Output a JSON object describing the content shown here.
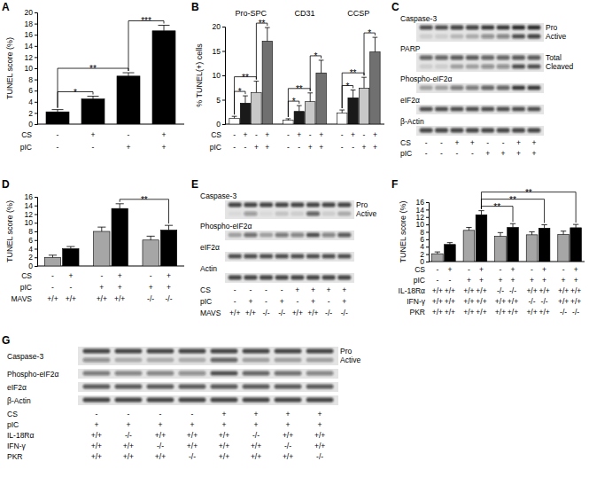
{
  "chart_data": [
    {
      "panel": "A",
      "type": "bar",
      "ylabel": "TUNEL score (%)",
      "ylim": [
        0,
        20
      ],
      "yticks": [
        0,
        2,
        4,
        6,
        8,
        10,
        12,
        14,
        16,
        18,
        20
      ],
      "categories": [
        null,
        null,
        null,
        null
      ],
      "series": [
        {
          "color": "#000000",
          "values": [
            2.2,
            4.5,
            8.6,
            16.7
          ],
          "errors": [
            0.4,
            0.5,
            0.6,
            1.0
          ]
        }
      ],
      "conditions": [
        {
          "label": "CS",
          "values": [
            "-",
            "+",
            "-",
            "+"
          ]
        },
        {
          "label": "pIC",
          "values": [
            "-",
            "-",
            "+",
            "+"
          ]
        }
      ],
      "significance": [
        {
          "from": [
            0,
            0
          ],
          "to": [
            1,
            0
          ],
          "label": "*"
        },
        {
          "from": [
            2,
            0
          ],
          "to": [
            3,
            0
          ],
          "label": "***"
        },
        {
          "from": [
            0,
            0
          ],
          "to": [
            2,
            0
          ],
          "label": "**"
        }
      ]
    },
    {
      "panel": "B",
      "type": "bar",
      "ylabel": "% TUNEL(+) cells",
      "ylim": [
        0,
        20
      ],
      "yticks": [
        0,
        5,
        10,
        15,
        20
      ],
      "categories": [
        "Pro-SPC",
        "CD31",
        "CCSP"
      ],
      "series": [
        {
          "color": "#ffffff",
          "values": [
            1.2,
            0.8,
            2.3
          ],
          "errors": [
            0.4,
            0.3,
            0.6
          ]
        },
        {
          "color": "#1a1a1a",
          "values": [
            4.3,
            2.6,
            5.4
          ],
          "errors": [
            1.5,
            1.2,
            1.6
          ]
        },
        {
          "color": "#c8c8c8",
          "values": [
            6.5,
            4.6,
            7.4
          ],
          "errors": [
            2.3,
            1.8,
            2.2
          ]
        },
        {
          "color": "#707070",
          "values": [
            17.0,
            10.5,
            14.8
          ],
          "errors": [
            2.8,
            2.6,
            3.0
          ]
        }
      ],
      "conditions": [
        {
          "label": "CS",
          "values": [
            "-",
            "+",
            "-",
            "+",
            "-",
            "+",
            "-",
            "+",
            "-",
            "+",
            "-",
            "+"
          ]
        },
        {
          "label": "pIC",
          "values": [
            "-",
            "-",
            "+",
            "+",
            "-",
            "-",
            "+",
            "+",
            "-",
            "-",
            "+",
            "+"
          ]
        }
      ],
      "significance": [
        {
          "from": [
            0,
            0
          ],
          "to": [
            0,
            1
          ],
          "label": "*"
        },
        {
          "from": [
            0,
            2
          ],
          "to": [
            0,
            3
          ],
          "label": "**"
        },
        {
          "from": [
            0,
            0
          ],
          "to": [
            0,
            2
          ],
          "label": "**"
        },
        {
          "from": [
            1,
            0
          ],
          "to": [
            1,
            1
          ],
          "label": "*"
        },
        {
          "from": [
            1,
            2
          ],
          "to": [
            1,
            3
          ],
          "label": "*"
        },
        {
          "from": [
            1,
            0
          ],
          "to": [
            1,
            2
          ],
          "label": "**"
        },
        {
          "from": [
            2,
            0
          ],
          "to": [
            2,
            1
          ],
          "label": "*"
        },
        {
          "from": [
            2,
            2
          ],
          "to": [
            2,
            3
          ],
          "label": "*"
        },
        {
          "from": [
            2,
            0
          ],
          "to": [
            2,
            2
          ],
          "label": "**"
        }
      ]
    },
    {
      "panel": "D",
      "type": "bar",
      "ylabel": "TUNEL score (%)",
      "ylim": [
        0,
        16
      ],
      "yticks": [
        0,
        2,
        4,
        6,
        8,
        10,
        12,
        14,
        16
      ],
      "categories": [
        null,
        null,
        null
      ],
      "series": [
        {
          "color": "#a6a6a6",
          "values": [
            2.0,
            8.0,
            6.0
          ],
          "errors": [
            0.5,
            1.0,
            0.9
          ]
        },
        {
          "color": "#000000",
          "values": [
            4.0,
            13.3,
            8.3
          ],
          "errors": [
            0.5,
            1.1,
            1.1
          ]
        }
      ],
      "conditions": [
        {
          "label": "CS",
          "values": [
            "-",
            "+",
            "-",
            "+",
            "-",
            "+"
          ]
        },
        {
          "label": "pIC",
          "values": [
            "-",
            "-",
            "+",
            "+",
            "+",
            "+"
          ]
        },
        {
          "label": "MAVS",
          "values": [
            "+/+",
            "+/+",
            "+/+",
            "+/+",
            "-/-",
            "-/-"
          ]
        }
      ],
      "significance": [
        {
          "from": [
            1,
            1
          ],
          "to": [
            2,
            1
          ],
          "label": "**"
        }
      ]
    },
    {
      "panel": "F",
      "type": "bar",
      "ylabel": "TUNEL score (%)",
      "ylim": [
        0,
        16
      ],
      "yticks": [
        0,
        2,
        4,
        6,
        8,
        10,
        12,
        14,
        16
      ],
      "categories": [
        null,
        null,
        null,
        null,
        null
      ],
      "series": [
        {
          "color": "#a6a6a6",
          "values": [
            2.1,
            8.4,
            6.8,
            7.2,
            7.3
          ],
          "errors": [
            0.5,
            0.8,
            1.0,
            0.8,
            0.9
          ]
        },
        {
          "color": "#000000",
          "values": [
            4.6,
            12.6,
            9.2,
            9.0,
            9.1
          ],
          "errors": [
            0.5,
            1.1,
            1.0,
            0.9,
            0.9
          ]
        }
      ],
      "conditions": [
        {
          "label": "CS",
          "values": [
            "-",
            "+",
            "-",
            "+",
            "-",
            "+",
            "-",
            "+",
            "-",
            "+"
          ]
        },
        {
          "label": "pIC",
          "values": [
            "-",
            "-",
            "+",
            "+",
            "+",
            "+",
            "+",
            "+",
            "+",
            "+"
          ]
        },
        {
          "label": "IL-18Rα",
          "values": [
            "+/+",
            "+/+",
            "+/+",
            "+/+",
            "-/-",
            "-/-",
            "+/+",
            "+/+",
            "+/+",
            "+/+"
          ]
        },
        {
          "label": "IFN-γ",
          "values": [
            "+/+",
            "+/+",
            "+/+",
            "+/+",
            "+/+",
            "+/+",
            "-/-",
            "-/-",
            "+/+",
            "+/+"
          ]
        },
        {
          "label": "PKR",
          "values": [
            "+/+",
            "+/+",
            "+/+",
            "+/+",
            "+/+",
            "+/+",
            "+/+",
            "+/+",
            "-/-",
            "-/-"
          ]
        }
      ],
      "significance": [
        {
          "from": [
            1,
            1
          ],
          "to": [
            2,
            1
          ],
          "label": "**"
        },
        {
          "from": [
            1,
            1
          ],
          "to": [
            3,
            1
          ],
          "label": "**"
        },
        {
          "from": [
            1,
            1
          ],
          "to": [
            4,
            1
          ],
          "label": "**"
        }
      ]
    }
  ],
  "blots": [
    {
      "panel": "C",
      "rows": [
        {
          "label": "Caspase-3",
          "bands": [
            {
              "label": "Pro",
              "intensity": [
                0.7,
                0.7,
                0.75,
                0.75,
                0.8,
                0.8,
                0.85,
                0.85
              ]
            },
            {
              "label": "Active",
              "intensity": [
                0.1,
                0.1,
                0.2,
                0.25,
                0.4,
                0.45,
                0.7,
                0.75
              ]
            }
          ]
        },
        {
          "label": "PARP",
          "bands": [
            {
              "label": "Total",
              "intensity": [
                0.6,
                0.6,
                0.65,
                0.65,
                0.6,
                0.6,
                0.65,
                0.65
              ]
            },
            {
              "label": "Cleaved",
              "intensity": [
                0.1,
                0.1,
                0.3,
                0.3,
                0.4,
                0.4,
                0.7,
                0.7
              ]
            }
          ]
        },
        {
          "label": "Phospho-eIF2α",
          "bands": [
            {
              "intensity": [
                0.3,
                0.3,
                0.5,
                0.5,
                0.6,
                0.6,
                0.8,
                0.8
              ]
            }
          ]
        },
        {
          "label": "eIF2α",
          "bands": [
            {
              "intensity": [
                0.7,
                0.7,
                0.7,
                0.7,
                0.7,
                0.7,
                0.7,
                0.7
              ]
            }
          ]
        },
        {
          "label": "β-Actin",
          "bands": [
            {
              "intensity": [
                0.75,
                0.75,
                0.75,
                0.75,
                0.75,
                0.75,
                0.75,
                0.75
              ]
            }
          ]
        }
      ],
      "conditions": [
        {
          "label": "CS",
          "values": [
            "-",
            "-",
            "+",
            "+",
            "-",
            "-",
            "+",
            "+"
          ]
        },
        {
          "label": "pIC",
          "values": [
            "-",
            "-",
            "-",
            "-",
            "+",
            "+",
            "+",
            "+"
          ]
        }
      ]
    },
    {
      "panel": "E",
      "rows": [
        {
          "label": "Caspase-3",
          "bands": [
            {
              "label": "Pro",
              "intensity": [
                0.75,
                0.75,
                0.75,
                0.75,
                0.75,
                0.75,
                0.75,
                0.75
              ]
            },
            {
              "label": "Active",
              "intensity": [
                0.05,
                0.35,
                0.05,
                0.15,
                0.1,
                0.6,
                0.1,
                0.25
              ]
            }
          ]
        },
        {
          "label": "Phospho-eIF2α",
          "bands": [
            {
              "intensity": [
                0.3,
                0.55,
                0.3,
                0.5,
                0.45,
                0.7,
                0.45,
                0.65
              ]
            }
          ]
        },
        {
          "label": "eIF2α",
          "bands": [
            {
              "intensity": [
                0.7,
                0.7,
                0.7,
                0.7,
                0.7,
                0.7,
                0.7,
                0.7
              ]
            }
          ]
        },
        {
          "label": "Actin",
          "bands": [
            {
              "intensity": [
                0.75,
                0.75,
                0.75,
                0.75,
                0.75,
                0.75,
                0.75,
                0.75
              ]
            }
          ]
        }
      ],
      "conditions": [
        {
          "label": "CS",
          "values": [
            "-",
            "-",
            "-",
            "-",
            "+",
            "+",
            "+",
            "+"
          ]
        },
        {
          "label": "pIC",
          "values": [
            "-",
            "+",
            "-",
            "+",
            "-",
            "+",
            "-",
            "+"
          ]
        },
        {
          "label": "MAVS",
          "values": [
            "+/+",
            "+/+",
            "-/-",
            "-/-",
            "+/+",
            "+/+",
            "-/-",
            "-/-"
          ]
        }
      ]
    },
    {
      "panel": "G",
      "rows": [
        {
          "label": "Caspase-3",
          "bands": [
            {
              "label": "Pro",
              "intensity": [
                0.75,
                0.75,
                0.75,
                0.75,
                0.75,
                0.75,
                0.75,
                0.75
              ]
            },
            {
              "label": "Active",
              "intensity": [
                0.4,
                0.25,
                0.25,
                0.25,
                0.6,
                0.3,
                0.3,
                0.3
              ]
            }
          ]
        },
        {
          "label": "Phospho-eIF2α",
          "bands": [
            {
              "intensity": [
                0.5,
                0.45,
                0.45,
                0.4,
                0.7,
                0.6,
                0.55,
                0.45
              ]
            }
          ]
        },
        {
          "label": "eIF2α",
          "bands": [
            {
              "intensity": [
                0.65,
                0.65,
                0.65,
                0.65,
                0.65,
                0.65,
                0.65,
                0.65
              ]
            }
          ]
        },
        {
          "label": "β-Actin",
          "bands": [
            {
              "intensity": [
                0.75,
                0.75,
                0.75,
                0.75,
                0.75,
                0.75,
                0.75,
                0.75
              ]
            }
          ]
        }
      ],
      "conditions": [
        {
          "label": "CS",
          "values": [
            "-",
            "-",
            "-",
            "-",
            "+",
            "+",
            "+",
            "+"
          ]
        },
        {
          "label": "pIC",
          "values": [
            "+",
            "+",
            "+",
            "+",
            "+",
            "+",
            "+",
            "+"
          ]
        },
        {
          "label": "IL-18Rα",
          "values": [
            "+/+",
            "-/-",
            "+/+",
            "+/+",
            "+/+",
            "-/-",
            "+/+",
            "+/+"
          ]
        },
        {
          "label": "IFN-γ",
          "values": [
            "+/+",
            "+/+",
            "-/-",
            "+/+",
            "+/+",
            "+/+",
            "-/-",
            "+/+"
          ]
        },
        {
          "label": "PKR",
          "values": [
            "+/+",
            "+/+",
            "+/+",
            "-/-",
            "+/+",
            "+/+",
            "+/+",
            "-/-"
          ]
        }
      ]
    }
  ]
}
